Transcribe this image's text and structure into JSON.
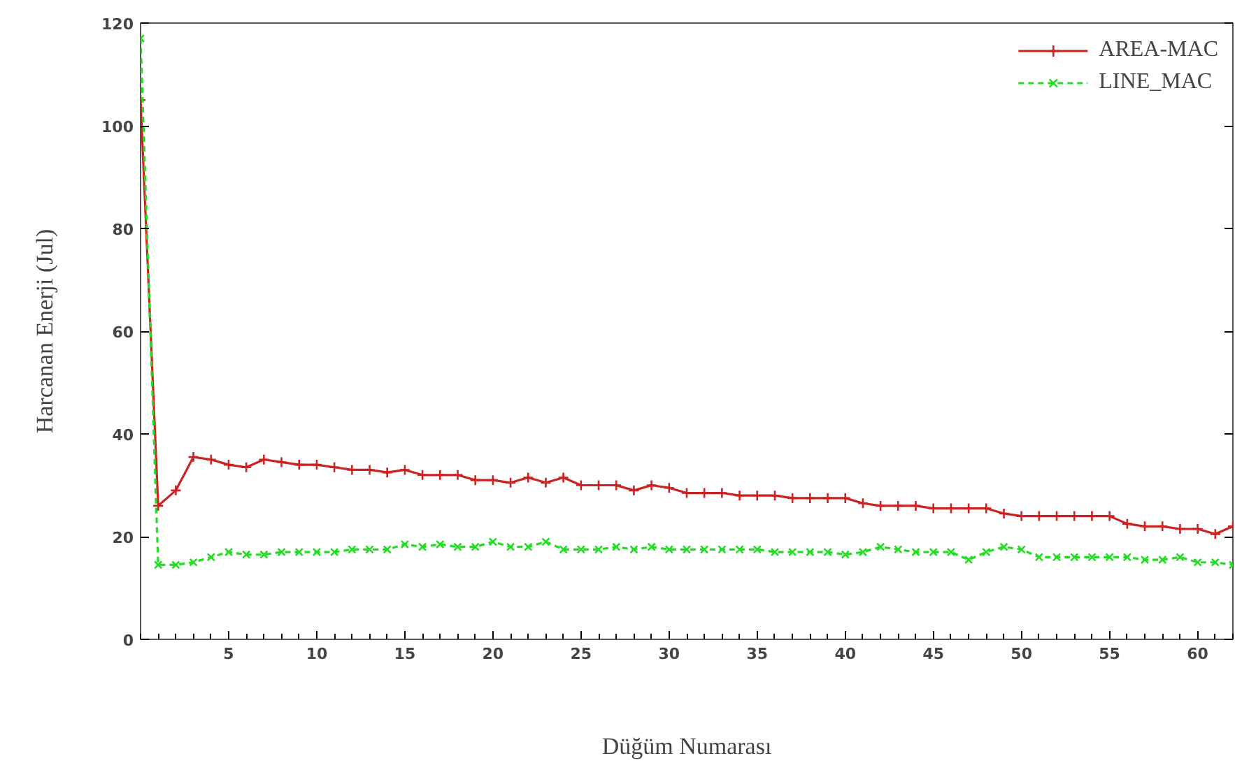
{
  "chart_data": {
    "type": "line",
    "xlabel": "Düğüm Numarası",
    "ylabel": "Harcanan Enerji (Jul)",
    "x": [
      0,
      1,
      2,
      3,
      4,
      5,
      6,
      7,
      8,
      9,
      10,
      11,
      12,
      13,
      14,
      15,
      16,
      17,
      18,
      19,
      20,
      21,
      22,
      23,
      24,
      25,
      26,
      27,
      28,
      29,
      30,
      31,
      32,
      33,
      34,
      35,
      36,
      37,
      38,
      39,
      40,
      41,
      42,
      43,
      44,
      45,
      46,
      47,
      48,
      49,
      50,
      51,
      52,
      53,
      54,
      55,
      56,
      57,
      58,
      59,
      60,
      61,
      62
    ],
    "series": [
      {
        "name": "AREA-MAC",
        "color": "#cc2222",
        "marker": "cross",
        "line_style": "solid",
        "values": [
          105,
          26,
          29,
          35.5,
          35,
          34,
          33.5,
          35,
          34.5,
          34,
          34,
          33.5,
          33,
          33,
          32.5,
          33,
          32,
          32,
          32,
          31,
          31,
          30.5,
          31.5,
          30.5,
          31.5,
          30,
          30,
          30,
          29,
          30,
          29.5,
          28.5,
          28.5,
          28.5,
          28,
          28,
          28,
          27.5,
          27.5,
          27.5,
          27.5,
          26.5,
          26,
          26,
          26,
          25.5,
          25.5,
          25.5,
          25.5,
          24.5,
          24,
          24,
          24,
          24,
          24,
          24,
          22.5,
          22,
          22,
          21.5,
          21.5,
          20.5,
          22
        ]
      },
      {
        "name": "LINE_MAC",
        "color": "#22dd22",
        "marker": "x",
        "line_style": "dashed",
        "values": [
          117,
          14.5,
          14.5,
          15,
          16,
          17,
          16.5,
          16.5,
          17,
          17,
          17,
          17,
          17.5,
          17.5,
          17.5,
          18.5,
          18,
          18.5,
          18,
          18,
          19,
          18,
          18,
          19,
          17.5,
          17.5,
          17.5,
          18,
          17.5,
          18,
          17.5,
          17.5,
          17.5,
          17.5,
          17.5,
          17.5,
          17,
          17,
          17,
          17,
          16.5,
          17,
          18,
          17.5,
          17,
          17,
          17,
          15.5,
          17,
          18,
          17.5,
          16,
          16,
          16,
          16,
          16,
          16,
          15.5,
          15.5,
          16,
          15,
          15,
          14.5
        ]
      }
    ],
    "xlim": [
      0,
      62
    ],
    "ylim": [
      0,
      120
    ],
    "xticks": [
      5,
      10,
      15,
      20,
      25,
      30,
      35,
      40,
      45,
      50,
      55,
      60
    ],
    "yticks": [
      0,
      20,
      40,
      60,
      80,
      100,
      120
    ],
    "grid": false,
    "legend": "top right"
  }
}
